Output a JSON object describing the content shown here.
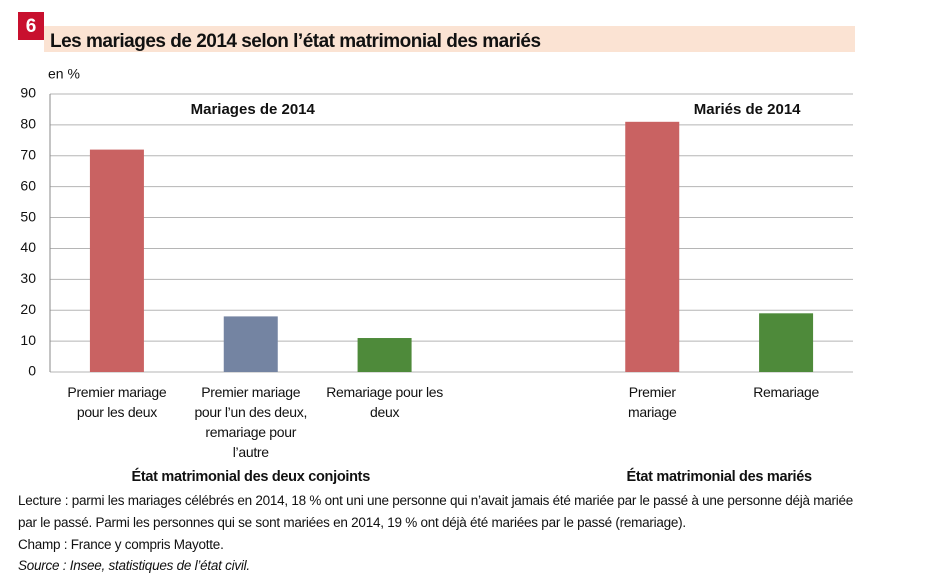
{
  "chart_data": {
    "type": "bar",
    "number": "6",
    "title": "Les mariages de 2014 selon l’état matrimonial des mariés",
    "y_unit_label": "en %",
    "ylim": [
      0,
      90
    ],
    "yticks": [
      0,
      10,
      20,
      30,
      40,
      50,
      60,
      70,
      80,
      90
    ],
    "grid": true,
    "groups": [
      {
        "title": "Mariages de 2014",
        "xlabel": "État matrimonial des deux conjoints",
        "categories": [
          "Premier mariage pour les deux",
          "Premier mariage pour l’un des deux, remariage pour l’autre",
          "Remariage pour les deux"
        ],
        "values": [
          72,
          18,
          11
        ],
        "colors": [
          "#c96262",
          "#7484a2",
          "#4e8a3a"
        ]
      },
      {
        "title": "Mariés de 2014",
        "xlabel": "État matrimonial des mariés",
        "categories": [
          "Premier mariage",
          "Remariage"
        ],
        "values": [
          81,
          19
        ],
        "colors": [
          "#c96262",
          "#4e8a3a"
        ]
      }
    ]
  },
  "notes": {
    "lecture": "Lecture : parmi les mariages célébrés en 2014, 18 % ont uni une personne qui n’avait jamais été mariée par le passé à une personne déjà mariée par le passé. Parmi les personnes qui se sont mariées en 2014, 19 % ont déjà été mariées par le passé (remariage).",
    "champ": "Champ : France y compris Mayotte.",
    "source": "Source : Insee, statistiques de l’état civil."
  }
}
